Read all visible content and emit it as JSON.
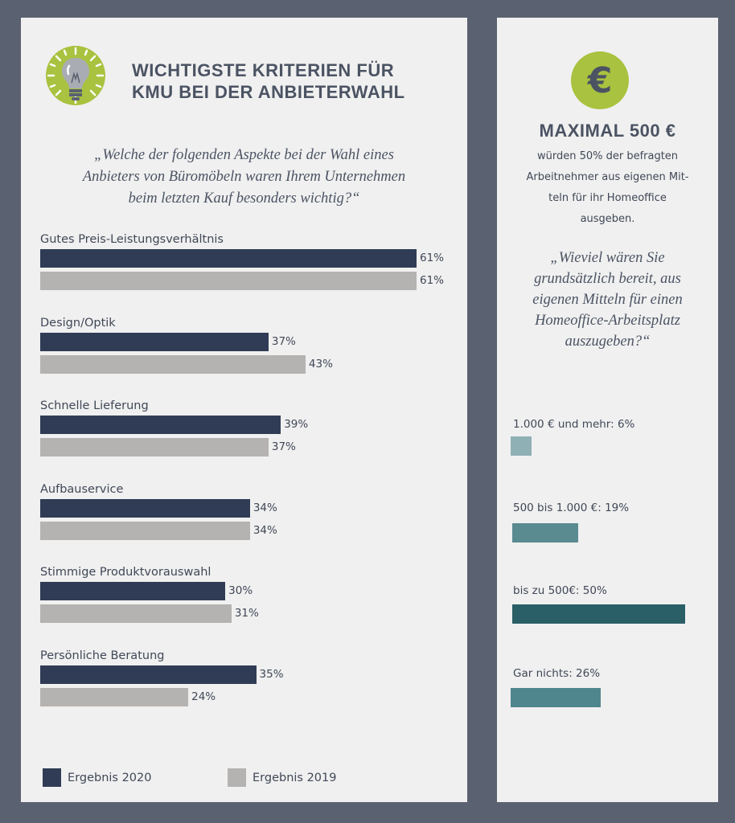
{
  "left": {
    "title_line1": "WICHTIGSTE KRITERIEN FÜR",
    "title_line2": "KMU BEI DER ANBIETERWAHL",
    "question_line1": "„Welche der folgenden Aspekte bei der Wahl eines",
    "question_line2": "Anbieters von Büromöbeln waren Ihrem Unternehmen",
    "question_line3": "beim letzten Kauf besonders wichtig?“",
    "icon": "lightbulb-icon",
    "legend": {
      "item1": "Ergebnis 2020",
      "item2": "Ergebnis 2019"
    }
  },
  "right": {
    "icon": "euro-icon",
    "euro_symbol": "€",
    "max_title": "MAXIMAL 500 €",
    "desc_line1": "würden 50% der befragten",
    "desc_line2": "Arbeitnehmer aus eigenen Mit-",
    "desc_line3": "teln für ihr Homeoffice",
    "desc_line4": "ausgeben.",
    "question_line1": "„Wieviel wären Sie",
    "question_line2": "grundsätzlich bereit, aus",
    "question_line3": "eigenen Mitteln für einen",
    "question_line4": "Homeoffice-Arbeitsplatz",
    "question_line5": "auszugeben?“"
  },
  "chart_data": [
    {
      "type": "bar",
      "orientation": "horizontal",
      "categories": [
        "Gutes Preis-Leistungsverhältnis",
        "Design/Optik",
        "Schnelle Lieferung",
        "Aufbauservice",
        "Stimmige Produktvorauswahl",
        "Persönliche Beratung"
      ],
      "series": [
        {
          "name": "Ergebnis 2020",
          "values": [
            61,
            37,
            39,
            34,
            30,
            35
          ],
          "labels": [
            "61%",
            "37%",
            "39%",
            "34%",
            "30%",
            "35%"
          ],
          "color": "#303c55"
        },
        {
          "name": "Ergebnis 2019",
          "values": [
            61,
            43,
            37,
            34,
            31,
            24
          ],
          "labels": [
            "61%",
            "43%",
            "37%",
            "34%",
            "31%",
            "24%"
          ],
          "color": "#b5b3b1"
        }
      ],
      "unit": "%",
      "legend": "bottom",
      "grid": false
    },
    {
      "type": "bar",
      "orientation": "horizontal",
      "categories": [
        "1.000 € und mehr: 6%",
        "500 bis 1.000 €: 19%",
        "bis zu 500€: 50%",
        "Gar nichts: 26%"
      ],
      "values": [
        6,
        19,
        50,
        26
      ],
      "colors": [
        "#8fb0b4",
        "#5a8b91",
        "#2b5f67",
        "#4f868d"
      ],
      "unit": "%",
      "grid": false
    }
  ]
}
